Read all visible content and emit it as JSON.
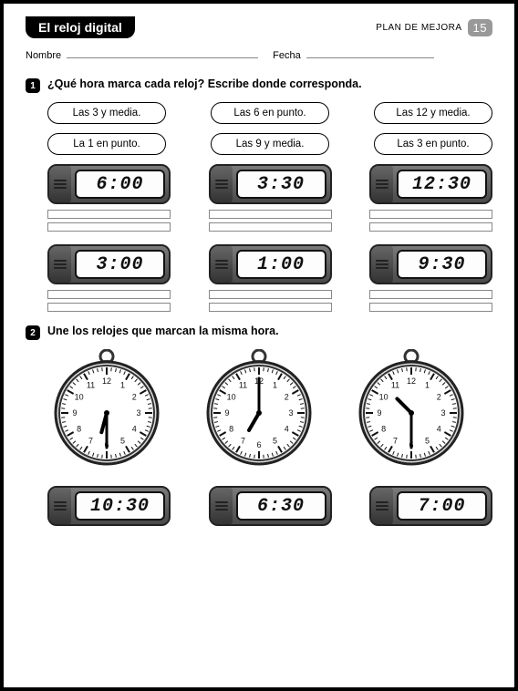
{
  "header": {
    "title": "El reloj digital",
    "plan_label": "PLAN DE MEJORA",
    "page_number": "15"
  },
  "name_row": {
    "name_label": "Nombre",
    "date_label": "Fecha"
  },
  "q1": {
    "number": "1",
    "text": "¿Qué hora marca cada reloj? Escribe donde corresponda.",
    "pills": [
      [
        "Las 3 y media.",
        "Las 6 en punto.",
        "Las 12 y media."
      ],
      [
        "La 1 en punto.",
        "Las 9 y media.",
        "Las 3 en punto."
      ]
    ],
    "digital_row1": [
      "6:00",
      "3:30",
      "12:30"
    ],
    "digital_row2": [
      "3:00",
      "1:00",
      "9:30"
    ],
    "answer_rows_per_clock": 2
  },
  "q2": {
    "number": "2",
    "text": "Une los relojes que marcan la misma hora.",
    "analog_clocks": [
      {
        "hour_angle": 195,
        "minute_angle": 180
      },
      {
        "hour_angle": 210,
        "minute_angle": 0
      },
      {
        "hour_angle": 315,
        "minute_angle": 180
      }
    ],
    "digital_row": [
      "10:30",
      "6:30",
      "7:00"
    ]
  },
  "style": {
    "clock_body_gradient_top": "#7a7a7a",
    "clock_body_gradient_bottom": "#4a4a4a",
    "screen_bg": "#fdfdfd",
    "border_color": "#111111",
    "pill_border": "#000000",
    "answer_border": "#888888",
    "page_border": "#000000"
  }
}
